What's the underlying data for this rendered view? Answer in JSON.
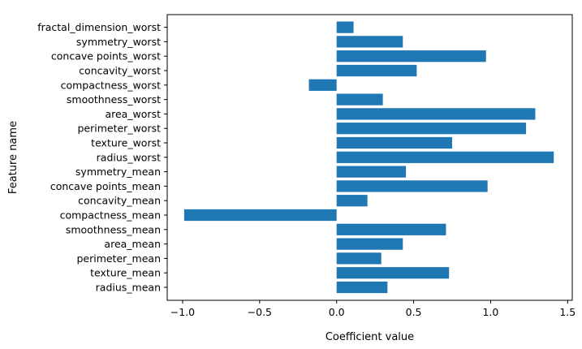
{
  "chart_data": {
    "type": "bar",
    "orientation": "horizontal",
    "xlabel": "Coefficient value",
    "ylabel": "Feature name",
    "xlim": [
      -1.1,
      1.53
    ],
    "xticks": [
      -1.0,
      -0.5,
      0.0,
      0.5,
      1.0,
      1.5
    ],
    "xtick_labels": [
      "−1.0",
      "−0.5",
      "0.0",
      "0.5",
      "1.0",
      "1.5"
    ],
    "grid": false,
    "bar_color": "#1f77b4",
    "categories": [
      "radius_mean",
      "texture_mean",
      "perimeter_mean",
      "area_mean",
      "smoothness_mean",
      "compactness_mean",
      "concavity_mean",
      "concave points_mean",
      "symmetry_mean",
      "radius_worst",
      "texture_worst",
      "perimeter_worst",
      "area_worst",
      "smoothness_worst",
      "compactness_worst",
      "concavity_worst",
      "concave points_worst",
      "symmetry_worst",
      "fractal_dimension_worst"
    ],
    "values": [
      0.33,
      0.73,
      0.29,
      0.43,
      0.71,
      -0.99,
      0.2,
      0.98,
      0.45,
      1.41,
      0.75,
      1.23,
      1.29,
      0.3,
      -0.18,
      0.52,
      0.97,
      0.43,
      0.11
    ]
  }
}
